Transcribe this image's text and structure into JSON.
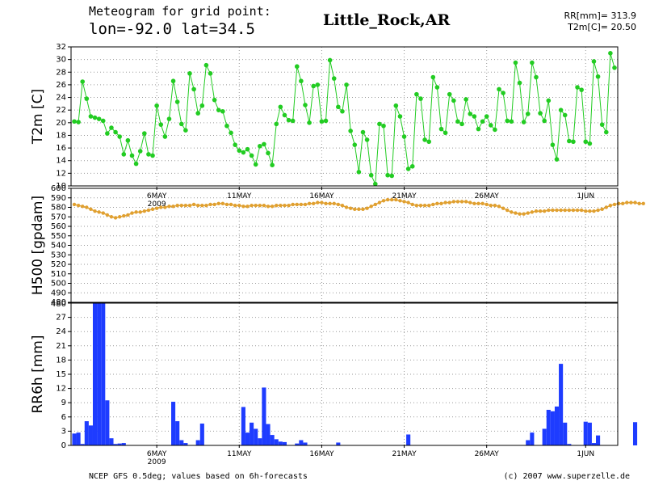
{
  "header": {
    "line1": "Meteogram for grid point:",
    "line2": "lon=-92.0 lat=34.5",
    "station": "Little_Rock,AR",
    "rr_total": "RR[mm]= 313.9",
    "t2m_now": "T2m[C]= 20.50"
  },
  "footer": {
    "left": "NCEP GFS 0.5deg; values based on 6h-forecasts",
    "right": "(c) 2007 www.superzelle.de"
  },
  "colors": {
    "t2m": "#22cc22",
    "h500": "#e0a030",
    "rr6h": "#1e3cff",
    "grid": "#999999",
    "axis": "#000000"
  },
  "chart_data": [
    {
      "type": "line",
      "ylabel": "T2m [C]",
      "ylim": [
        10,
        32
      ],
      "yticks": [
        "10",
        "12",
        "14",
        "16",
        "18",
        "20",
        "22",
        "24",
        "26",
        "28",
        "30",
        "32"
      ],
      "x_start": "2009-05-01 00:00",
      "x_step_hours": 6,
      "xticks": [
        {
          "label": "6MAY",
          "x": "2009-05-06"
        },
        {
          "label": "11MAY",
          "x": "2009-05-11"
        },
        {
          "label": "16MAY",
          "x": "2009-05-16"
        },
        {
          "label": "21MAY",
          "x": "2009-05-21"
        },
        {
          "label": "26MAY",
          "x": "2009-05-26"
        },
        {
          "label": "1JUN",
          "x": "2009-06-01"
        }
      ],
      "year_label": "2009",
      "grid": true,
      "series": [
        {
          "values": [
            20.2,
            20.1,
            26.5,
            23.8,
            21,
            20.8,
            20.6,
            20.3,
            18.3,
            19.2,
            18.5,
            17.8,
            15,
            17.2,
            14.8,
            13.5,
            15.5,
            18.3,
            15,
            14.8,
            22.7,
            19.7,
            17.8,
            20.6,
            26.6,
            23.3,
            19.8,
            18.8,
            27.8,
            25.3,
            21.5,
            22.7,
            29.1,
            27.8,
            23.6,
            22,
            21.8,
            19.5,
            18.4,
            16.5,
            15.6,
            15.3,
            15.8,
            14.8,
            13.4,
            16.3,
            16.6,
            15.2,
            13.3,
            19.8,
            22.5,
            21.2,
            20.4,
            20.3,
            28.9,
            26.6,
            22.8,
            20,
            25.8,
            26,
            20.2,
            20.3,
            29.9,
            27,
            22.5,
            21.8,
            26,
            18.7,
            16.5,
            12.2,
            18.5,
            17.3,
            11.7,
            10.3,
            19.8,
            19.5,
            11.7,
            11.6,
            22.7,
            21,
            17.8,
            12.7,
            13.1,
            24.5,
            23.8,
            17.3,
            17,
            27.2,
            25.6,
            19,
            18.4,
            24.5,
            23.5,
            20.2,
            19.8,
            23.7,
            21.4,
            21,
            19,
            20.2,
            21,
            19.6,
            18.9,
            25.3,
            24.7,
            20.3,
            20.2,
            29.5,
            26.3,
            20.1,
            21.4,
            29.5,
            27.2,
            21.5,
            20.3,
            23.5,
            16.5,
            14.2,
            22,
            21.2,
            17.1,
            17,
            25.6,
            25.2,
            17,
            16.7,
            29.7,
            27.3,
            19.7,
            18.5,
            31,
            28.7
          ]
        }
      ]
    },
    {
      "type": "line",
      "ylabel": "H500 [gpdam]",
      "ylim": [
        480,
        600
      ],
      "yticks": [
        "480",
        "490",
        "500",
        "510",
        "520",
        "530",
        "540",
        "550",
        "560",
        "570",
        "580",
        "590",
        "600"
      ],
      "x_start": "2009-05-01 00:00",
      "x_step_hours": 6,
      "grid": true,
      "series": [
        {
          "values": [
            583,
            582,
            581,
            580,
            578,
            576,
            575,
            574,
            572,
            570,
            569,
            570,
            571,
            572,
            574,
            575,
            575,
            576,
            577,
            578,
            579,
            580,
            580,
            581,
            581,
            582,
            582,
            582,
            582,
            583,
            582,
            582,
            582,
            583,
            583,
            584,
            584,
            583,
            583,
            582,
            582,
            581,
            581,
            582,
            582,
            582,
            582,
            581,
            581,
            582,
            582,
            582,
            582,
            583,
            583,
            583,
            583,
            584,
            584,
            585,
            585,
            584,
            584,
            584,
            583,
            582,
            580,
            579,
            578,
            578,
            578,
            579,
            581,
            583,
            585,
            587,
            588,
            588,
            588,
            587,
            586,
            585,
            583,
            582,
            582,
            582,
            582,
            583,
            584,
            584,
            585,
            585,
            586,
            586,
            586,
            586,
            585,
            584,
            584,
            584,
            583,
            582,
            582,
            581,
            579,
            577,
            575,
            574,
            573,
            573,
            574,
            575,
            576,
            576,
            576,
            577,
            577,
            577,
            577,
            577,
            577,
            577,
            577,
            577,
            576,
            576,
            576,
            577,
            578,
            580,
            582,
            583,
            584,
            584,
            585,
            585,
            585,
            584,
            584
          ]
        }
      ]
    },
    {
      "type": "bar",
      "ylabel": "RR6h [mm]",
      "ylim": [
        0,
        30
      ],
      "yticks": [
        "0",
        "3",
        "6",
        "9",
        "12",
        "15",
        "18",
        "21",
        "24",
        "27",
        "30"
      ],
      "top_tick_label": "480",
      "x_start": "2009-05-01 00:00",
      "x_step_hours": 6,
      "xticks": [
        {
          "label": "6MAY",
          "x": "2009-05-06"
        },
        {
          "label": "11MAY",
          "x": "2009-05-11"
        },
        {
          "label": "16MAY",
          "x": "2009-05-16"
        },
        {
          "label": "21MAY",
          "x": "2009-05-21"
        },
        {
          "label": "26MAY",
          "x": "2009-05-26"
        },
        {
          "label": "1JUN",
          "x": "2009-06-01"
        }
      ],
      "year_label": "2009",
      "grid": true,
      "series": [
        {
          "values": [
            2.5,
            2.7,
            0.3,
            5.1,
            4.2,
            30,
            30,
            30,
            9.5,
            1.5,
            0.3,
            0.4,
            0.5,
            0,
            0,
            0,
            0,
            0,
            0,
            0,
            0,
            0,
            0,
            0,
            9.2,
            5.1,
            1.1,
            0.5,
            0,
            0,
            1.1,
            4.6,
            0,
            0,
            0,
            0,
            0,
            0,
            0,
            0,
            0,
            8.1,
            2.7,
            4.8,
            3.5,
            1.5,
            12.2,
            4.5,
            2.2,
            1.3,
            0.8,
            0.7,
            0,
            0,
            0.4,
            1.1,
            0.6,
            0,
            0,
            0,
            0,
            0,
            0,
            0,
            0.6,
            0,
            0,
            0,
            0,
            0,
            0,
            0,
            0,
            0,
            0,
            0,
            0,
            0,
            0,
            0,
            0,
            2.3,
            0,
            0,
            0,
            0,
            0,
            0,
            0,
            0,
            0,
            0,
            0,
            0,
            0,
            0,
            0,
            0,
            0,
            0,
            0,
            0,
            0,
            0,
            0,
            0,
            0,
            0,
            0,
            0,
            1.1,
            2.7,
            0,
            0,
            3.5,
            7.5,
            7.2,
            8.2,
            17.2,
            4.8,
            0.3,
            0,
            0,
            0,
            5,
            4.8,
            0.5,
            2.1,
            0,
            0,
            0,
            0,
            0,
            0,
            0,
            0,
            4.9,
            0,
            0,
            0,
            0
          ]
        }
      ]
    }
  ]
}
